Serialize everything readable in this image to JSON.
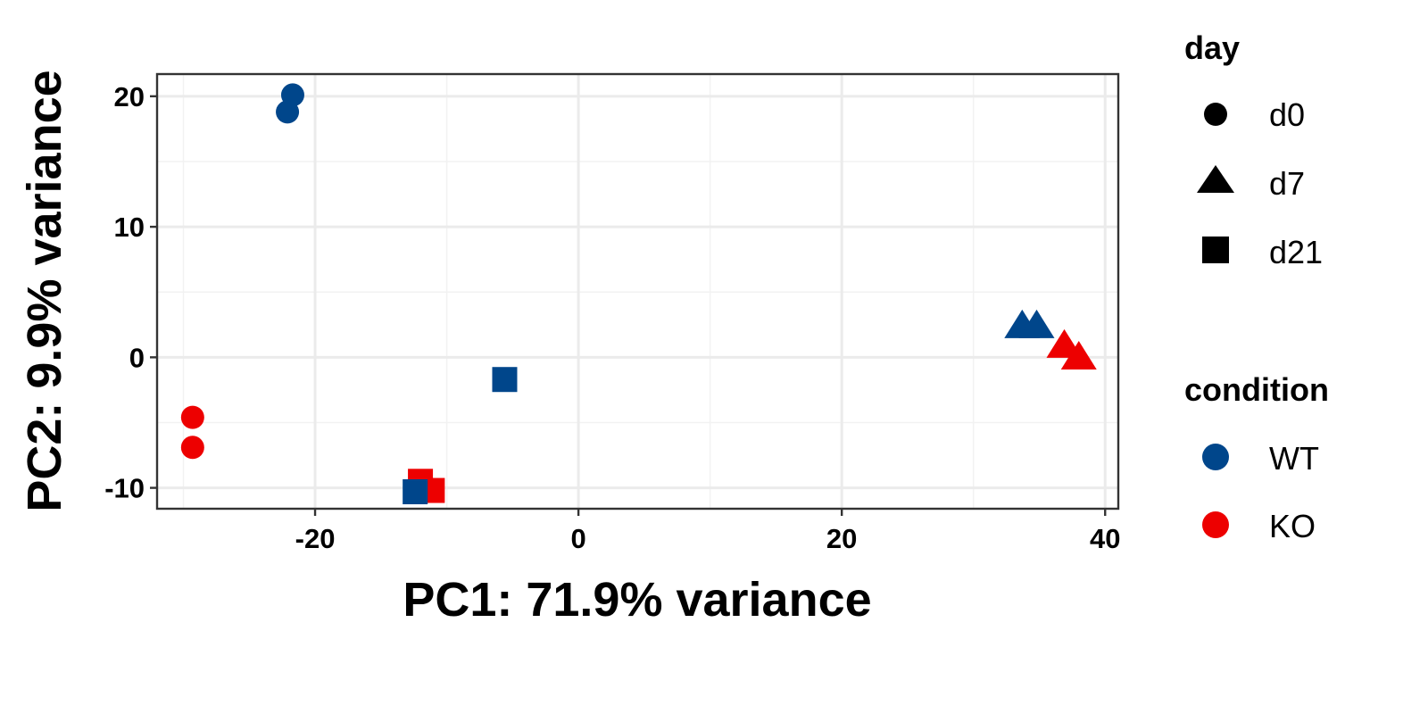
{
  "chart_data": {
    "type": "scatter",
    "xlabel": "PC1: 71.9% variance",
    "ylabel": "PC2: 9.9% variance",
    "xlim": [
      -32,
      41
    ],
    "ylim": [
      -11.6,
      21.7
    ],
    "x_ticks": [
      -20,
      0,
      20,
      40
    ],
    "y_ticks": [
      -10,
      0,
      10,
      20
    ],
    "grid": true,
    "legend_placement": "right",
    "colors": {
      "WT": "#00468B",
      "KO": "#ED0000"
    },
    "shapes": {
      "d0": "circle",
      "d7": "triangle",
      "d21": "square"
    },
    "legend": {
      "day": {
        "title": "day",
        "items": [
          "d0",
          "d7",
          "d21"
        ]
      },
      "condition": {
        "title": "condition",
        "items": [
          "WT",
          "KO"
        ]
      }
    },
    "points": [
      {
        "x": -21.7,
        "y": 20.1,
        "condition": "WT",
        "day": "d0"
      },
      {
        "x": -22.1,
        "y": 18.8,
        "condition": "WT",
        "day": "d0"
      },
      {
        "x": -29.3,
        "y": -4.6,
        "condition": "KO",
        "day": "d0"
      },
      {
        "x": -29.3,
        "y": -6.9,
        "condition": "KO",
        "day": "d0"
      },
      {
        "x": 33.7,
        "y": 2.3,
        "condition": "WT",
        "day": "d7"
      },
      {
        "x": 34.8,
        "y": 2.3,
        "condition": "WT",
        "day": "d7"
      },
      {
        "x": 36.9,
        "y": 0.8,
        "condition": "KO",
        "day": "d7"
      },
      {
        "x": 38.0,
        "y": -0.1,
        "condition": "KO",
        "day": "d7"
      },
      {
        "x": -5.6,
        "y": -1.7,
        "condition": "WT",
        "day": "d21"
      },
      {
        "x": -12.0,
        "y": -9.5,
        "condition": "KO",
        "day": "d21"
      },
      {
        "x": -11.1,
        "y": -10.2,
        "condition": "KO",
        "day": "d21"
      },
      {
        "x": -12.4,
        "y": -10.3,
        "condition": "WT",
        "day": "d21"
      }
    ]
  }
}
